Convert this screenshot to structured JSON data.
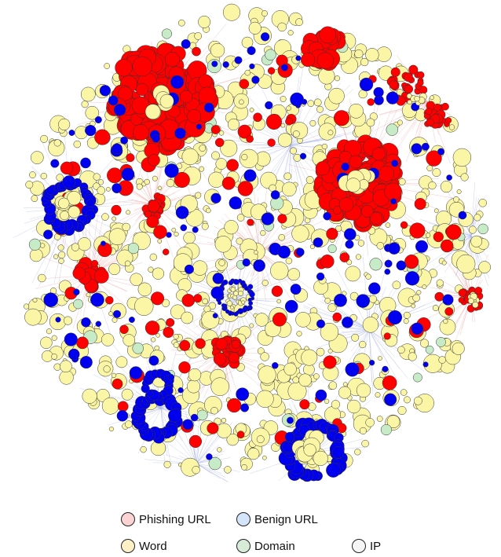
{
  "legend": {
    "items": [
      {
        "label": "Phishing URL",
        "color": "#fbd3d3"
      },
      {
        "label": "Benign URL",
        "color": "#d4e4fa"
      },
      {
        "label": "Word",
        "color": "#fdf0c6"
      },
      {
        "label": "Domain",
        "color": "#d6ecd6"
      },
      {
        "label": "IP",
        "color": "#f5f5f5"
      }
    ]
  },
  "graph_colors": {
    "phishing_node": "#ff0000",
    "benign_node": "#0000ee",
    "word_node": "#fbf6a6",
    "domain_node": "#c6ebc6",
    "ip_node": "#f5f5f5",
    "phishing_edge": "#f3a3a3",
    "benign_edge": "#a9b3e6"
  }
}
